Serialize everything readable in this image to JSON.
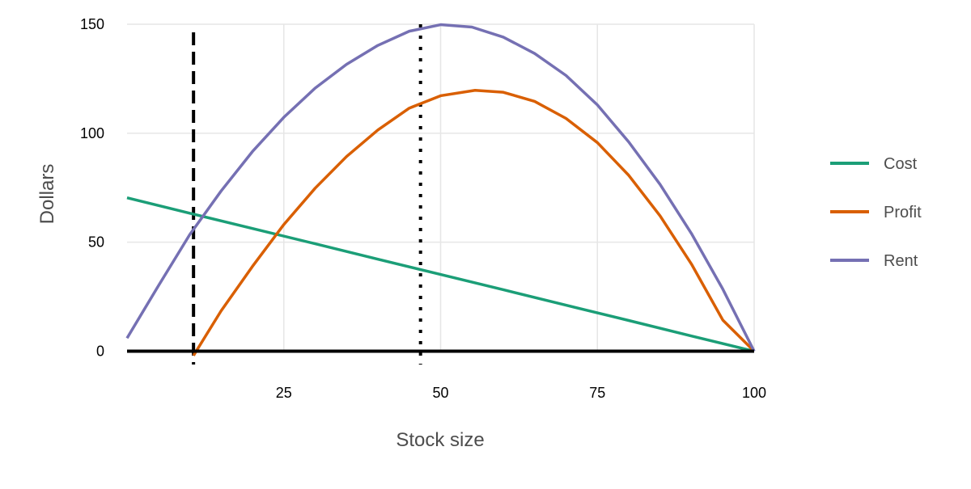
{
  "chart_data": {
    "type": "line",
    "title": "",
    "xlabel": "Stock size",
    "ylabel": "Dollars",
    "xlim": [
      0,
      100
    ],
    "ylim": [
      -5,
      150
    ],
    "x_ticks": [
      25,
      50,
      75,
      100
    ],
    "y_ticks": [
      0,
      50,
      100,
      150
    ],
    "grid": true,
    "legend_position": "right",
    "series": [
      {
        "name": "Cost",
        "color": "#1b9e77",
        "x": [
          0,
          10,
          20,
          30,
          40,
          50,
          60,
          70,
          80,
          90,
          100
        ],
        "y": [
          70.4,
          63.3,
          56.3,
          49.3,
          42.2,
          35.2,
          28.2,
          21.1,
          14.1,
          7.0,
          0
        ]
      },
      {
        "name": "Profit",
        "color": "#d95f02",
        "x": [
          10.6,
          15,
          20,
          25,
          30,
          35,
          40,
          45,
          50,
          55.5,
          60,
          65,
          70,
          75,
          80,
          85,
          90,
          95,
          100
        ],
        "y": [
          -2,
          18.5,
          38.9,
          58.1,
          74.8,
          89.3,
          101.5,
          111.5,
          117.2,
          119.7,
          118.8,
          114.6,
          106.8,
          95.7,
          80.7,
          62.1,
          40.0,
          14.3,
          0
        ]
      },
      {
        "name": "Rent",
        "color": "#7570b3",
        "x": [
          0,
          5,
          10,
          15,
          20,
          25,
          30,
          35,
          40,
          45,
          50,
          55,
          60,
          65,
          70,
          75,
          80,
          85,
          90,
          95,
          100
        ],
        "y": [
          6,
          30,
          53.5,
          73.5,
          91.6,
          107.3,
          120.7,
          131.6,
          140.3,
          146.8,
          149.8,
          148.7,
          144.1,
          136.6,
          126.5,
          113.0,
          96.0,
          76.5,
          54.0,
          28.5,
          0
        ]
      }
    ],
    "reference_lines": [
      {
        "type": "horizontal",
        "y": 0,
        "style": "solid",
        "color": "#000000"
      },
      {
        "type": "vertical",
        "x": 10.6,
        "style": "dashed",
        "color": "#000000"
      },
      {
        "type": "vertical",
        "x": 46.8,
        "style": "dotted",
        "color": "#000000"
      }
    ]
  }
}
